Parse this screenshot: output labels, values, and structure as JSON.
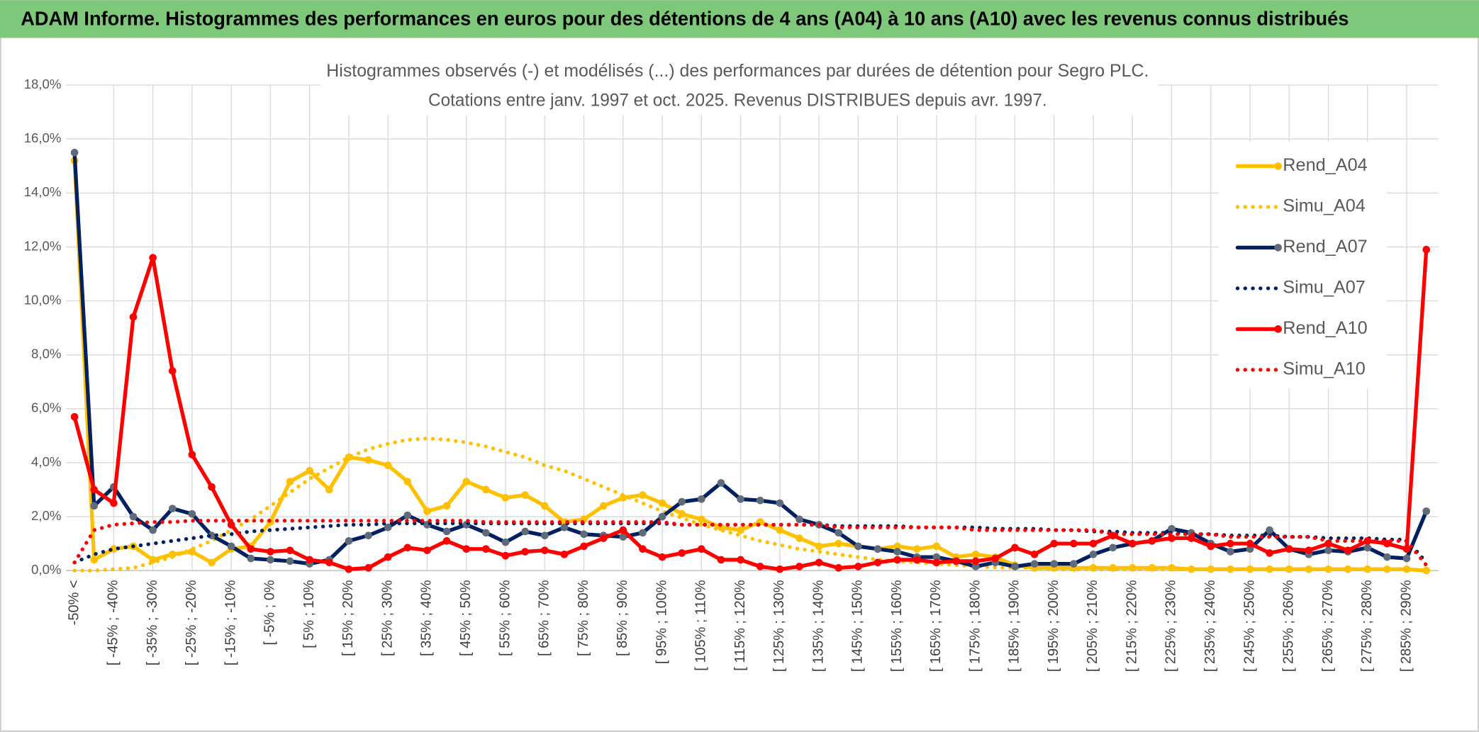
{
  "chart_data": {
    "type": "line",
    "header": "ADAM Informe. Histogrammes des performances en euros pour des détentions de 4 ans (A04) à 10 ans (A10) avec les revenus connus distribués",
    "title": "Histogrammes observés (-) et modélisés (...) des performances par durées de détention pour Segro PLC.",
    "subtitle": "Cotations entre janv. 1997 et oct. 2025. Revenus DISTRIBUES depuis avr. 1997.",
    "categories": [
      "-50% <",
      null,
      "[ -45% ; -40%",
      null,
      "[ -35% ; -30%",
      null,
      "[ -25% ; -20%",
      null,
      "[ -15% ; -10%",
      null,
      "[ -5% ; 0%",
      null,
      "[ 5% ; 10%",
      null,
      "[ 15% ; 20%",
      null,
      "[ 25% ; 30%",
      null,
      "[ 35% ; 40%",
      null,
      "[ 45% ; 50%",
      null,
      "[ 55% ; 60%",
      null,
      "[ 65% ; 70%",
      null,
      "[ 75% ; 80%",
      null,
      "[ 85% ; 90%",
      null,
      "[ 95% ; 100%",
      null,
      "[ 105% ; 110%",
      null,
      "[ 115% ; 120%",
      null,
      "[ 125% ; 130%",
      null,
      "[ 135% ; 140%",
      null,
      "[ 145% ; 150%",
      null,
      "[ 155% ; 160%",
      null,
      "[ 165% ; 170%",
      null,
      "[ 175% ; 180%",
      null,
      "[ 185% ; 190%",
      null,
      "[ 195% ; 200%",
      null,
      "[ 205% ; 210%",
      null,
      "[ 215% ; 220%",
      null,
      "[ 225% ; 230%",
      null,
      "[ 235% ; 240%",
      null,
      "[ 245% ; 250%",
      null,
      "[ 255% ; 260%",
      null,
      "[ 265% ; 270%",
      null,
      "[ 275% ; 280%",
      null,
      "[ 285% ; 290%",
      null
    ],
    "series": [
      {
        "name": "Rend_A04",
        "color": "#FFC000",
        "marker_color": "#FFC000",
        "line": "solid",
        "values": [
          15.2,
          0.4,
          0.8,
          0.9,
          0.4,
          0.6,
          0.7,
          0.3,
          0.8,
          0.9,
          1.8,
          3.3,
          3.7,
          3.0,
          4.2,
          4.1,
          3.9,
          3.3,
          2.2,
          2.4,
          3.3,
          3.0,
          2.7,
          2.8,
          2.4,
          1.8,
          1.9,
          2.4,
          2.7,
          2.8,
          2.5,
          2.1,
          1.9,
          1.6,
          1.5,
          1.8,
          1.5,
          1.2,
          0.9,
          1.0,
          0.9,
          0.8,
          0.9,
          0.8,
          0.9,
          0.5,
          0.6,
          0.5,
          0.2,
          0.1,
          0.1,
          0.1,
          0.1,
          0.1,
          0.1,
          0.1,
          0.1,
          0.05,
          0.05,
          0.05,
          0.05,
          0.05,
          0.05,
          0.05,
          0.05,
          0.05,
          0.05,
          0.05,
          0.05,
          0
        ]
      },
      {
        "name": "Simu_A04",
        "color": "#FFC000",
        "line": "dotted",
        "values": [
          0,
          0,
          0.05,
          0.1,
          0.3,
          0.5,
          0.8,
          1.1,
          1.5,
          1.9,
          2.4,
          2.9,
          3.4,
          3.8,
          4.2,
          4.5,
          4.7,
          4.85,
          4.9,
          4.85,
          4.75,
          4.6,
          4.4,
          4.2,
          3.9,
          3.7,
          3.4,
          3.1,
          2.8,
          2.5,
          2.2,
          1.95,
          1.7,
          1.5,
          1.3,
          1.1,
          0.95,
          0.8,
          0.7,
          0.6,
          0.5,
          0.4,
          0.35,
          0.3,
          0.25,
          0.2,
          0.15,
          0.12,
          0.1,
          0.1,
          0.05,
          0.05,
          0.05,
          0.05,
          0.05,
          0.05,
          0.05,
          0.05,
          0.05,
          0.05,
          0.05,
          0.05,
          0.05,
          0.05,
          0.05,
          0.05,
          0.05,
          0.05,
          0.05,
          0
        ]
      },
      {
        "name": "Rend_A07",
        "color": "#002060",
        "marker_color": "#5F6B7A",
        "line": "solid",
        "values": [
          15.5,
          2.4,
          3.1,
          2.0,
          1.5,
          2.3,
          2.1,
          1.3,
          0.9,
          0.45,
          0.4,
          0.35,
          0.25,
          0.4,
          1.1,
          1.3,
          1.6,
          2.05,
          1.7,
          1.45,
          1.7,
          1.4,
          1.05,
          1.45,
          1.3,
          1.6,
          1.35,
          1.3,
          1.25,
          1.4,
          2.0,
          2.55,
          2.65,
          3.25,
          2.65,
          2.6,
          2.5,
          1.9,
          1.7,
          1.4,
          0.9,
          0.8,
          0.7,
          0.5,
          0.5,
          0.35,
          0.15,
          0.3,
          0.15,
          0.25,
          0.25,
          0.25,
          0.6,
          0.85,
          1.0,
          1.1,
          1.55,
          1.4,
          1.0,
          0.7,
          0.8,
          1.5,
          0.8,
          0.6,
          0.75,
          0.7,
          0.85,
          0.5,
          0.45,
          2.2
        ]
      },
      {
        "name": "Simu_A07",
        "color": "#002060",
        "line": "dotted",
        "values": [
          0.3,
          0.6,
          0.8,
          0.9,
          1.0,
          1.1,
          1.2,
          1.3,
          1.35,
          1.45,
          1.5,
          1.55,
          1.6,
          1.65,
          1.7,
          1.7,
          1.75,
          1.75,
          1.75,
          1.75,
          1.75,
          1.75,
          1.75,
          1.75,
          1.75,
          1.75,
          1.75,
          1.75,
          1.75,
          1.75,
          1.75,
          1.7,
          1.7,
          1.7,
          1.7,
          1.7,
          1.7,
          1.7,
          1.7,
          1.65,
          1.65,
          1.65,
          1.65,
          1.6,
          1.6,
          1.6,
          1.6,
          1.55,
          1.55,
          1.55,
          1.5,
          1.5,
          1.45,
          1.45,
          1.4,
          1.4,
          1.4,
          1.35,
          1.35,
          1.3,
          1.3,
          1.3,
          1.25,
          1.25,
          1.2,
          1.2,
          1.2,
          1.15,
          1.15,
          0.3
        ]
      },
      {
        "name": "Rend_A10",
        "color": "#FF0000",
        "marker_color": "#FF0000",
        "line": "solid",
        "values": [
          5.7,
          3.0,
          2.5,
          9.4,
          11.6,
          7.4,
          4.3,
          3.1,
          1.7,
          0.8,
          0.7,
          0.75,
          0.4,
          0.3,
          0.05,
          0.1,
          0.5,
          0.85,
          0.75,
          1.1,
          0.8,
          0.8,
          0.55,
          0.7,
          0.75,
          0.6,
          0.9,
          1.2,
          1.5,
          0.8,
          0.5,
          0.65,
          0.8,
          0.4,
          0.4,
          0.15,
          0.05,
          0.15,
          0.3,
          0.1,
          0.15,
          0.3,
          0.4,
          0.4,
          0.3,
          0.35,
          0.35,
          0.45,
          0.85,
          0.6,
          1.0,
          1.0,
          1.0,
          1.3,
          1.0,
          1.1,
          1.2,
          1.2,
          0.9,
          1.0,
          1.0,
          0.65,
          0.8,
          0.75,
          1.0,
          0.75,
          1.1,
          1.0,
          0.8,
          11.9
        ]
      },
      {
        "name": "Simu_A10",
        "color": "#FF0000",
        "line": "dotted",
        "values": [
          0.3,
          1.5,
          1.7,
          1.75,
          1.8,
          1.8,
          1.85,
          1.85,
          1.85,
          1.85,
          1.85,
          1.85,
          1.85,
          1.85,
          1.85,
          1.85,
          1.85,
          1.85,
          1.85,
          1.85,
          1.85,
          1.8,
          1.8,
          1.8,
          1.8,
          1.8,
          1.8,
          1.8,
          1.8,
          1.8,
          1.8,
          1.7,
          1.7,
          1.7,
          1.7,
          1.7,
          1.7,
          1.7,
          1.7,
          1.6,
          1.6,
          1.6,
          1.6,
          1.6,
          1.6,
          1.6,
          1.5,
          1.5,
          1.5,
          1.5,
          1.5,
          1.5,
          1.5,
          1.35,
          1.35,
          1.35,
          1.35,
          1.35,
          1.35,
          1.25,
          1.25,
          1.25,
          1.25,
          1.25,
          1.1,
          1.1,
          1.1,
          1.1,
          1.1,
          0.2
        ]
      }
    ],
    "ylim": [
      0,
      18
    ],
    "yticks": [
      {
        "value": 0,
        "label": "0,0%"
      },
      {
        "value": 2,
        "label": "2,0%"
      },
      {
        "value": 4,
        "label": "4,0%"
      },
      {
        "value": 6,
        "label": "6,0%"
      },
      {
        "value": 8,
        "label": "8,0%"
      },
      {
        "value": 10,
        "label": "10,0%"
      },
      {
        "value": 12,
        "label": "12,0%"
      },
      {
        "value": 14,
        "label": "14,0%"
      },
      {
        "value": 16,
        "label": "16,0%"
      },
      {
        "value": 18,
        "label": "18,0%"
      }
    ],
    "grid": true,
    "legend": "upper right"
  }
}
